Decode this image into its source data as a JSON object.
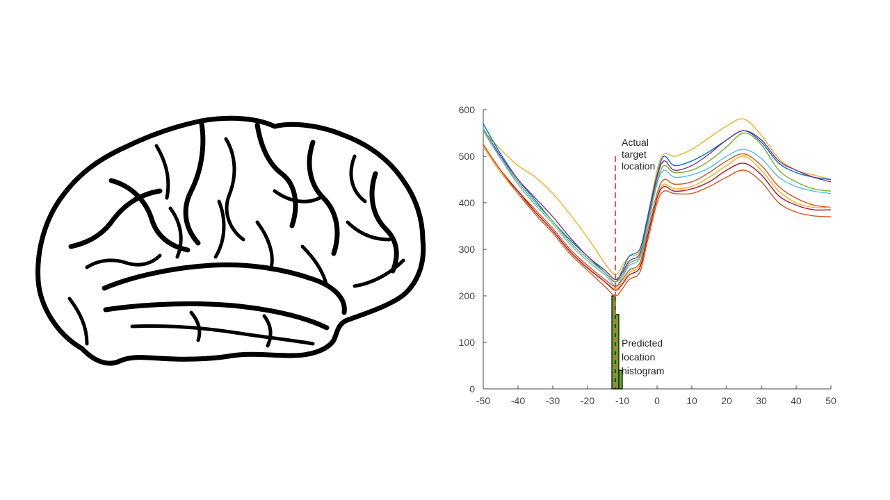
{
  "illustration": {
    "icon": "brain-icon"
  },
  "chart_data": {
    "type": "line",
    "title": "",
    "xlabel": "",
    "ylabel": "",
    "xlim": [
      -50,
      50
    ],
    "ylim": [
      0,
      600
    ],
    "xticks": [
      -50,
      -40,
      -30,
      -20,
      -10,
      0,
      10,
      20,
      30,
      40,
      50
    ],
    "yticks": [
      0,
      100,
      200,
      300,
      400,
      500,
      600
    ],
    "grid": false,
    "x": [
      -50,
      -45,
      -40,
      -35,
      -30,
      -25,
      -20,
      -15,
      -12,
      -10,
      -8,
      -5,
      -3,
      0,
      2,
      5,
      10,
      15,
      20,
      25,
      30,
      35,
      40,
      45,
      50
    ],
    "series": [
      {
        "color": "#edb120",
        "values": [
          555,
          515,
          480,
          455,
          420,
          375,
          325,
          270,
          245,
          265,
          285,
          295,
          360,
          470,
          505,
          500,
          515,
          540,
          565,
          580,
          545,
          495,
          470,
          460,
          450
        ]
      },
      {
        "color": "#0072bd",
        "values": [
          570,
          505,
          450,
          405,
          360,
          320,
          285,
          250,
          230,
          255,
          285,
          300,
          360,
          460,
          500,
          480,
          490,
          510,
          535,
          555,
          530,
          485,
          465,
          455,
          450
        ]
      },
      {
        "color": "#7e2f8e",
        "values": [
          560,
          500,
          450,
          410,
          370,
          325,
          285,
          255,
          235,
          250,
          275,
          290,
          350,
          455,
          490,
          470,
          480,
          505,
          535,
          555,
          535,
          490,
          470,
          455,
          445
        ]
      },
      {
        "color": "#77ac30",
        "values": [
          555,
          495,
          445,
          400,
          360,
          315,
          280,
          250,
          230,
          245,
          270,
          285,
          345,
          445,
          480,
          465,
          470,
          490,
          520,
          550,
          525,
          470,
          445,
          430,
          425
        ]
      },
      {
        "color": "#4dbeee",
        "values": [
          560,
          495,
          440,
          395,
          355,
          310,
          275,
          245,
          222,
          240,
          265,
          280,
          340,
          440,
          470,
          455,
          460,
          475,
          500,
          515,
          495,
          455,
          435,
          425,
          420
        ]
      },
      {
        "color": "#d95319",
        "values": [
          525,
          470,
          425,
          385,
          345,
          300,
          265,
          235,
          220,
          235,
          255,
          270,
          330,
          420,
          450,
          440,
          445,
          465,
          490,
          505,
          480,
          435,
          410,
          395,
          390
        ]
      },
      {
        "color": "#edb120",
        "values": [
          520,
          465,
          420,
          380,
          340,
          295,
          260,
          230,
          215,
          230,
          250,
          265,
          325,
          415,
          440,
          430,
          435,
          455,
          480,
          500,
          470,
          425,
          400,
          390,
          390
        ]
      },
      {
        "color": "#a2142f",
        "values": [
          525,
          470,
          425,
          380,
          340,
          295,
          260,
          230,
          212,
          225,
          245,
          260,
          320,
          410,
          435,
          425,
          430,
          445,
          470,
          485,
          460,
          415,
          395,
          385,
          385
        ]
      },
      {
        "color": "#d95319",
        "values": [
          525,
          470,
          420,
          375,
          335,
          290,
          255,
          220,
          200,
          215,
          235,
          250,
          310,
          400,
          425,
          420,
          420,
          435,
          455,
          470,
          445,
          400,
          380,
          372,
          370
        ]
      }
    ],
    "histogram": {
      "color": "#6aa329",
      "bins": [
        {
          "x0": -13,
          "x1": -12,
          "value": 200
        },
        {
          "x0": -12,
          "x1": -11,
          "value": 160
        },
        {
          "x0": -11,
          "x1": -10,
          "value": 40
        }
      ]
    },
    "target_line": {
      "x": -12,
      "y_top": 500,
      "color": "#ee5555"
    },
    "annotations": {
      "actual_target": [
        "Actual",
        "target",
        "location"
      ],
      "predicted_histogram": [
        "Predicted",
        "location",
        "histogram"
      ]
    }
  }
}
